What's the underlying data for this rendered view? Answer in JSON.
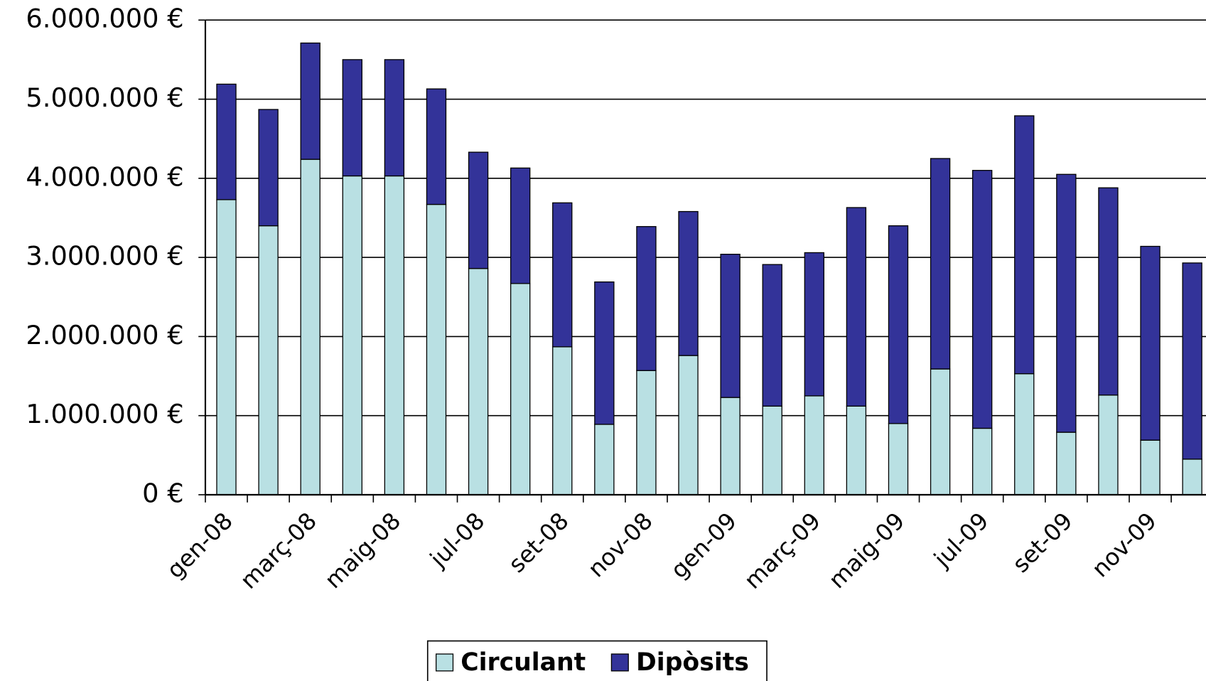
{
  "chart_data": {
    "type": "bar",
    "stacked": true,
    "categories": [
      "gen-08",
      null,
      "març-08",
      null,
      "maig-08",
      null,
      "jul-08",
      null,
      "set-08",
      null,
      "nov-08",
      null,
      "gen-09",
      null,
      "març-09",
      null,
      "maig-09",
      null,
      "jul-09",
      null,
      "set-09",
      null,
      "nov-09",
      null
    ],
    "series": [
      {
        "name": "Circulant",
        "color": "#b9e0e3",
        "values": [
          3730000,
          3400000,
          4240000,
          4030000,
          4030000,
          3670000,
          2860000,
          2670000,
          1870000,
          890000,
          1570000,
          1760000,
          1230000,
          1120000,
          1250000,
          1120000,
          900000,
          1590000,
          840000,
          1530000,
          790000,
          1260000,
          690000,
          450000
        ]
      },
      {
        "name": "Dipòsits",
        "color": "#333399",
        "values": [
          1460000,
          1470000,
          1470000,
          1470000,
          1470000,
          1460000,
          1470000,
          1460000,
          1820000,
          1800000,
          1820000,
          1820000,
          1810000,
          1790000,
          1810000,
          2510000,
          2500000,
          2660000,
          3260000,
          3260000,
          3260000,
          2620000,
          2450000,
          2480000
        ]
      }
    ],
    "ylim": [
      0,
      6000000
    ],
    "yticks": [
      {
        "value": 0,
        "label": "0 €"
      },
      {
        "value": 1000000,
        "label": "1.000.000 €"
      },
      {
        "value": 2000000,
        "label": "2.000.000 €"
      },
      {
        "value": 3000000,
        "label": "3.000.000 €"
      },
      {
        "value": 4000000,
        "label": "4.000.000 €"
      },
      {
        "value": 5000000,
        "label": "5.000.000 €"
      },
      {
        "value": 6000000,
        "label": "6.000.000 €"
      }
    ],
    "grid": true,
    "legend": "bottom"
  }
}
